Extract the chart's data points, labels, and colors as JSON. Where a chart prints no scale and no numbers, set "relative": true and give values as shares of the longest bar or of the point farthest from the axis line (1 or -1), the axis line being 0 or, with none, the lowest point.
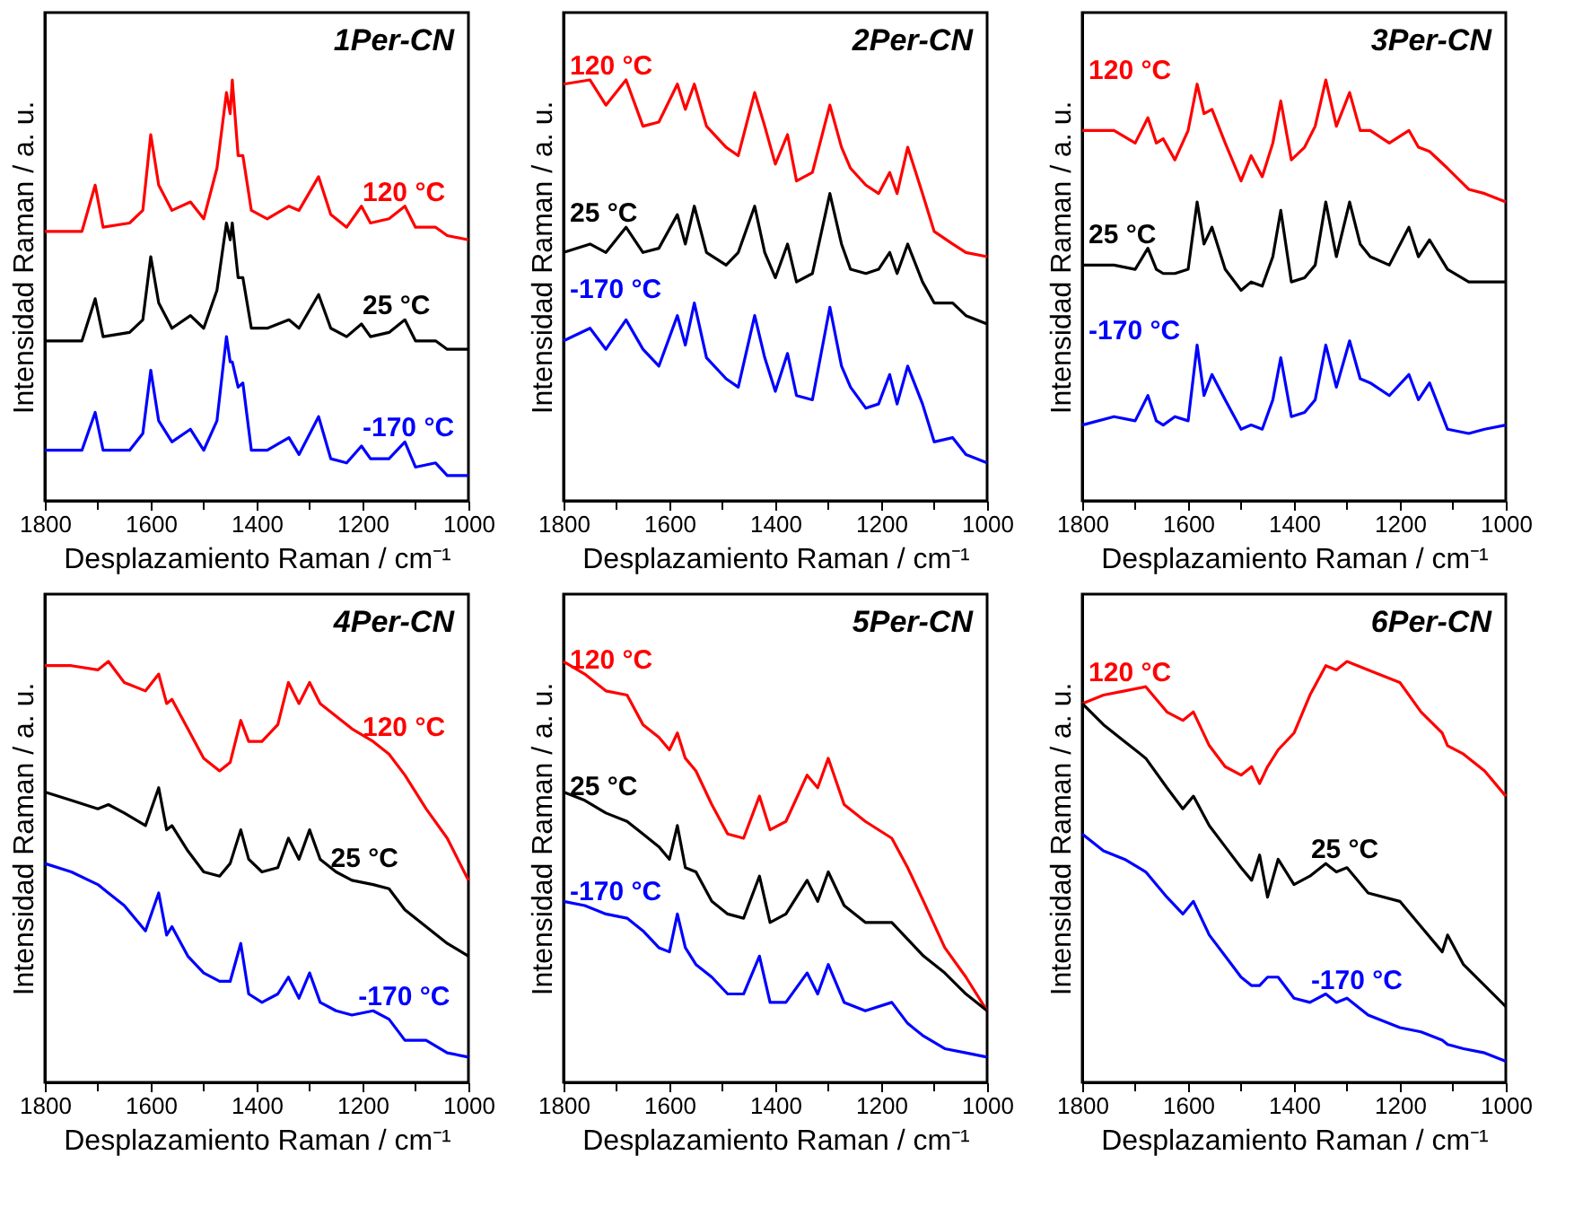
{
  "chart_data": [
    {
      "type": "line",
      "title": "1Per-CN",
      "xlabel": "Desplazamiento Raman / cm⁻¹",
      "ylabel": "Intensidad Raman / a. u.",
      "relative": true,
      "xlim": [
        1800,
        1000
      ],
      "xticks": [
        1800,
        {
          "value": 1700,
          "label": null
        },
        1600,
        {
          "value": 1500,
          "label": null
        },
        1400,
        {
          "value": 1300,
          "label": null
        },
        1200,
        {
          "value": 1100,
          "label": null
        },
        1000
      ],
      "x": [
        1800,
        1730,
        1705,
        1690,
        1640,
        1615,
        1600,
        1585,
        1560,
        1525,
        1500,
        1475,
        1457,
        1450,
        1446,
        1435,
        1426,
        1410,
        1380,
        1339,
        1320,
        1283,
        1260,
        1230,
        1202,
        1185,
        1150,
        1120,
        1100,
        1062,
        1040,
        1000
      ],
      "series": [
        {
          "name": "120 °C",
          "color": "#ff0000",
          "values": [
            0.64,
            0.64,
            0.75,
            0.65,
            0.66,
            0.69,
            0.87,
            0.75,
            0.69,
            0.71,
            0.67,
            0.79,
            0.97,
            0.92,
            1.0,
            0.82,
            0.82,
            0.69,
            0.67,
            0.7,
            0.69,
            0.77,
            0.68,
            0.65,
            0.7,
            0.66,
            0.67,
            0.7,
            0.65,
            0.65,
            0.63,
            0.62
          ]
        },
        {
          "name": "25 °C",
          "color": "#000000",
          "values": [
            0.38,
            0.38,
            0.48,
            0.39,
            0.4,
            0.43,
            0.58,
            0.47,
            0.41,
            0.44,
            0.41,
            0.5,
            0.66,
            0.62,
            0.66,
            0.53,
            0.53,
            0.41,
            0.41,
            0.43,
            0.41,
            0.49,
            0.41,
            0.39,
            0.42,
            0.39,
            0.4,
            0.43,
            0.38,
            0.38,
            0.36,
            0.36
          ]
        },
        {
          "name": "-170 °C",
          "color": "#0000ff",
          "values": [
            0.12,
            0.12,
            0.21,
            0.12,
            0.12,
            0.16,
            0.31,
            0.19,
            0.14,
            0.17,
            0.12,
            0.19,
            0.39,
            0.33,
            0.33,
            0.27,
            0.28,
            0.12,
            0.12,
            0.15,
            0.11,
            0.2,
            0.1,
            0.09,
            0.13,
            0.1,
            0.1,
            0.14,
            0.08,
            0.09,
            0.06,
            0.06
          ]
        }
      ]
    },
    {
      "type": "line",
      "title": "2Per-CN",
      "xlabel": "Desplazamiento Raman / cm⁻¹",
      "ylabel": "Intensidad Raman / a. u.",
      "relative": true,
      "xlim": [
        1800,
        1000
      ],
      "xticks": [
        1800,
        {
          "value": 1700,
          "label": null
        },
        1600,
        {
          "value": 1500,
          "label": null
        },
        1400,
        {
          "value": 1300,
          "label": null
        },
        1200,
        {
          "value": 1100,
          "label": null
        },
        1000
      ],
      "x": [
        1800,
        1750,
        1720,
        1682,
        1650,
        1620,
        1585,
        1570,
        1553,
        1530,
        1493,
        1470,
        1439,
        1420,
        1400,
        1377,
        1360,
        1330,
        1297,
        1275,
        1258,
        1229,
        1205,
        1184,
        1170,
        1150,
        1122,
        1100,
        1065,
        1040,
        1000
      ],
      "series": [
        {
          "name": "120 °C",
          "color": "#ff0000",
          "values": [
            0.99,
            1.0,
            0.94,
            1.0,
            0.89,
            0.9,
            0.99,
            0.93,
            0.99,
            0.89,
            0.84,
            0.82,
            0.97,
            0.89,
            0.8,
            0.87,
            0.76,
            0.78,
            0.94,
            0.84,
            0.79,
            0.75,
            0.73,
            0.78,
            0.73,
            0.84,
            0.73,
            0.64,
            0.61,
            0.59,
            0.58
          ]
        },
        {
          "name": "25 °C",
          "color": "#000000",
          "values": [
            0.59,
            0.61,
            0.59,
            0.65,
            0.59,
            0.6,
            0.68,
            0.61,
            0.7,
            0.59,
            0.56,
            0.59,
            0.7,
            0.59,
            0.53,
            0.61,
            0.52,
            0.54,
            0.73,
            0.61,
            0.55,
            0.54,
            0.55,
            0.59,
            0.54,
            0.61,
            0.52,
            0.47,
            0.47,
            0.44,
            0.42
          ]
        },
        {
          "name": "-170 °C",
          "color": "#0000ff",
          "values": [
            0.38,
            0.41,
            0.36,
            0.43,
            0.36,
            0.32,
            0.44,
            0.37,
            0.47,
            0.34,
            0.29,
            0.27,
            0.44,
            0.34,
            0.26,
            0.35,
            0.25,
            0.24,
            0.46,
            0.32,
            0.27,
            0.22,
            0.23,
            0.3,
            0.23,
            0.32,
            0.23,
            0.14,
            0.15,
            0.11,
            0.09
          ]
        }
      ]
    },
    {
      "type": "line",
      "title": "3Per-CN",
      "xlabel": "Desplazamiento Raman / cm⁻¹",
      "ylabel": "Intensidad Raman / a. u.",
      "relative": true,
      "xlim": [
        1800,
        1000
      ],
      "xticks": [
        1800,
        {
          "value": 1700,
          "label": null
        },
        1600,
        {
          "value": 1500,
          "label": null
        },
        1400,
        {
          "value": 1300,
          "label": null
        },
        1200,
        {
          "value": 1100,
          "label": null
        },
        1000
      ],
      "x": [
        1800,
        1740,
        1700,
        1676,
        1660,
        1647,
        1625,
        1600,
        1583,
        1570,
        1555,
        1530,
        1500,
        1481,
        1460,
        1440,
        1425,
        1405,
        1380,
        1360,
        1340,
        1320,
        1295,
        1275,
        1256,
        1220,
        1183,
        1165,
        1144,
        1110,
        1070,
        1040,
        1000
      ],
      "series": [
        {
          "name": "120 °C",
          "color": "#ff0000",
          "values": [
            0.88,
            0.88,
            0.85,
            0.91,
            0.85,
            0.86,
            0.81,
            0.88,
            0.99,
            0.92,
            0.93,
            0.85,
            0.76,
            0.82,
            0.77,
            0.85,
            0.95,
            0.81,
            0.84,
            0.89,
            1.0,
            0.89,
            0.97,
            0.88,
            0.88,
            0.85,
            0.88,
            0.84,
            0.83,
            0.79,
            0.74,
            0.73,
            0.71
          ]
        },
        {
          "name": "25 °C",
          "color": "#000000",
          "values": [
            0.56,
            0.56,
            0.55,
            0.6,
            0.55,
            0.54,
            0.54,
            0.55,
            0.71,
            0.61,
            0.65,
            0.55,
            0.5,
            0.52,
            0.51,
            0.58,
            0.69,
            0.52,
            0.53,
            0.56,
            0.71,
            0.58,
            0.71,
            0.61,
            0.58,
            0.56,
            0.65,
            0.58,
            0.62,
            0.55,
            0.52,
            0.52,
            0.52
          ]
        },
        {
          "name": "-170 °C",
          "color": "#0000ff",
          "values": [
            0.18,
            0.2,
            0.19,
            0.25,
            0.19,
            0.18,
            0.2,
            0.19,
            0.37,
            0.25,
            0.3,
            0.24,
            0.17,
            0.18,
            0.17,
            0.24,
            0.34,
            0.2,
            0.21,
            0.24,
            0.37,
            0.27,
            0.38,
            0.29,
            0.28,
            0.25,
            0.3,
            0.24,
            0.28,
            0.17,
            0.16,
            0.17,
            0.18
          ]
        }
      ]
    },
    {
      "type": "line",
      "title": "4Per-CN",
      "xlabel": "Desplazamiento Raman / cm⁻¹",
      "ylabel": "Intensidad Raman / a. u.",
      "relative": true,
      "xlim": [
        1800,
        1000
      ],
      "xticks": [
        1800,
        {
          "value": 1700,
          "label": null
        },
        1600,
        {
          "value": 1500,
          "label": null
        },
        1400,
        {
          "value": 1300,
          "label": null
        },
        1200,
        {
          "value": 1100,
          "label": null
        },
        1000
      ],
      "x": [
        1800,
        1750,
        1700,
        1680,
        1650,
        1610,
        1585,
        1570,
        1560,
        1530,
        1500,
        1470,
        1450,
        1430,
        1415,
        1390,
        1360,
        1340,
        1320,
        1300,
        1280,
        1250,
        1220,
        1180,
        1150,
        1120,
        1080,
        1040,
        1000
      ],
      "series": [
        {
          "name": "120 °C",
          "color": "#ff0000",
          "values": [
            0.99,
            0.99,
            0.98,
            1.0,
            0.95,
            0.93,
            0.97,
            0.9,
            0.91,
            0.84,
            0.77,
            0.74,
            0.76,
            0.86,
            0.81,
            0.81,
            0.85,
            0.95,
            0.9,
            0.95,
            0.9,
            0.87,
            0.84,
            0.81,
            0.78,
            0.73,
            0.65,
            0.58,
            0.48
          ]
        },
        {
          "name": "25 °C",
          "color": "#000000",
          "values": [
            0.69,
            0.67,
            0.65,
            0.66,
            0.64,
            0.61,
            0.7,
            0.6,
            0.61,
            0.55,
            0.5,
            0.49,
            0.52,
            0.6,
            0.53,
            0.5,
            0.51,
            0.58,
            0.53,
            0.6,
            0.53,
            0.5,
            0.48,
            0.47,
            0.46,
            0.41,
            0.37,
            0.33,
            0.3
          ]
        },
        {
          "name": "-170 °C",
          "color": "#0000ff",
          "values": [
            0.52,
            0.5,
            0.47,
            0.45,
            0.42,
            0.36,
            0.45,
            0.35,
            0.37,
            0.3,
            0.26,
            0.24,
            0.24,
            0.33,
            0.21,
            0.19,
            0.21,
            0.25,
            0.2,
            0.26,
            0.19,
            0.17,
            0.16,
            0.17,
            0.15,
            0.1,
            0.1,
            0.07,
            0.06
          ]
        }
      ]
    },
    {
      "type": "line",
      "title": "5Per-CN",
      "xlabel": "Desplazamiento Raman / cm⁻¹",
      "ylabel": "Intensidad Raman / a. u.",
      "relative": true,
      "xlim": [
        1800,
        1000
      ],
      "xticks": [
        1800,
        {
          "value": 1700,
          "label": null
        },
        1600,
        {
          "value": 1500,
          "label": null
        },
        1400,
        {
          "value": 1300,
          "label": null
        },
        1200,
        {
          "value": 1100,
          "label": null
        },
        1000
      ],
      "x": [
        1800,
        1760,
        1720,
        1680,
        1650,
        1620,
        1600,
        1585,
        1570,
        1550,
        1520,
        1490,
        1460,
        1430,
        1410,
        1380,
        1340,
        1320,
        1300,
        1270,
        1230,
        1180,
        1150,
        1120,
        1080,
        1040,
        1000
      ],
      "series": [
        {
          "name": "120 °C",
          "color": "#ff0000",
          "values": [
            1.0,
            0.97,
            0.93,
            0.92,
            0.85,
            0.82,
            0.79,
            0.83,
            0.77,
            0.74,
            0.66,
            0.59,
            0.58,
            0.68,
            0.6,
            0.62,
            0.73,
            0.7,
            0.77,
            0.66,
            0.62,
            0.58,
            0.51,
            0.43,
            0.32,
            0.25,
            0.17
          ]
        },
        {
          "name": "25 °C",
          "color": "#000000",
          "values": [
            0.69,
            0.67,
            0.64,
            0.62,
            0.59,
            0.56,
            0.53,
            0.61,
            0.51,
            0.5,
            0.43,
            0.4,
            0.39,
            0.49,
            0.38,
            0.4,
            0.48,
            0.43,
            0.5,
            0.42,
            0.38,
            0.38,
            0.34,
            0.3,
            0.26,
            0.21,
            0.17
          ]
        },
        {
          "name": "-170 °C",
          "color": "#0000ff",
          "values": [
            0.43,
            0.42,
            0.4,
            0.39,
            0.36,
            0.32,
            0.31,
            0.4,
            0.32,
            0.28,
            0.25,
            0.21,
            0.21,
            0.3,
            0.19,
            0.19,
            0.26,
            0.21,
            0.28,
            0.19,
            0.17,
            0.19,
            0.14,
            0.11,
            0.08,
            0.07,
            0.06
          ]
        }
      ]
    },
    {
      "type": "line",
      "title": "6Per-CN",
      "xlabel": "Desplazamiento Raman / cm⁻¹",
      "ylabel": "Intensidad Raman / a. u.",
      "relative": true,
      "xlim": [
        1800,
        1000
      ],
      "xticks": [
        1800,
        {
          "value": 1700,
          "label": null
        },
        1600,
        {
          "value": 1500,
          "label": null
        },
        1400,
        {
          "value": 1300,
          "label": null
        },
        1200,
        {
          "value": 1100,
          "label": null
        },
        1000
      ],
      "x": [
        1800,
        1760,
        1720,
        1680,
        1640,
        1610,
        1590,
        1560,
        1530,
        1500,
        1480,
        1465,
        1450,
        1430,
        1400,
        1370,
        1340,
        1320,
        1300,
        1260,
        1200,
        1160,
        1120,
        1110,
        1080,
        1040,
        1000
      ],
      "series": [
        {
          "name": "120 °C",
          "color": "#ff0000",
          "values": [
            0.9,
            0.92,
            0.93,
            0.94,
            0.88,
            0.86,
            0.88,
            0.8,
            0.75,
            0.73,
            0.75,
            0.71,
            0.75,
            0.79,
            0.83,
            0.92,
            0.99,
            0.98,
            1.0,
            0.98,
            0.95,
            0.88,
            0.83,
            0.8,
            0.78,
            0.74,
            0.68
          ]
        },
        {
          "name": "25 °C",
          "color": "#000000",
          "values": [
            0.9,
            0.85,
            0.81,
            0.77,
            0.7,
            0.65,
            0.68,
            0.61,
            0.56,
            0.51,
            0.48,
            0.54,
            0.44,
            0.53,
            0.47,
            0.49,
            0.52,
            0.5,
            0.51,
            0.45,
            0.43,
            0.37,
            0.31,
            0.35,
            0.28,
            0.23,
            0.18
          ]
        },
        {
          "name": "-170 °C",
          "color": "#0000ff",
          "values": [
            0.59,
            0.55,
            0.53,
            0.5,
            0.44,
            0.4,
            0.43,
            0.35,
            0.3,
            0.25,
            0.23,
            0.23,
            0.25,
            0.25,
            0.2,
            0.19,
            0.21,
            0.19,
            0.2,
            0.16,
            0.13,
            0.12,
            0.1,
            0.09,
            0.08,
            0.07,
            0.05
          ]
        }
      ]
    }
  ]
}
